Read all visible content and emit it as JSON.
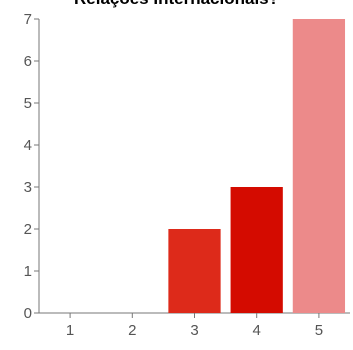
{
  "chart_data": {
    "type": "bar",
    "title": "Relações Internacionais?",
    "categories": [
      "1",
      "2",
      "3",
      "4",
      "5"
    ],
    "values": [
      0,
      0,
      2,
      3,
      7
    ],
    "colors": [
      "#dd2a1a",
      "#dd2a1a",
      "#dd2a1a",
      "#d40b00",
      "#ec8a8a"
    ],
    "ylim": [
      0,
      7
    ],
    "yticks": [
      "0",
      "1",
      "2",
      "3",
      "4",
      "5",
      "6",
      "7"
    ],
    "xlabel": "",
    "ylabel": "",
    "grid": false
  }
}
